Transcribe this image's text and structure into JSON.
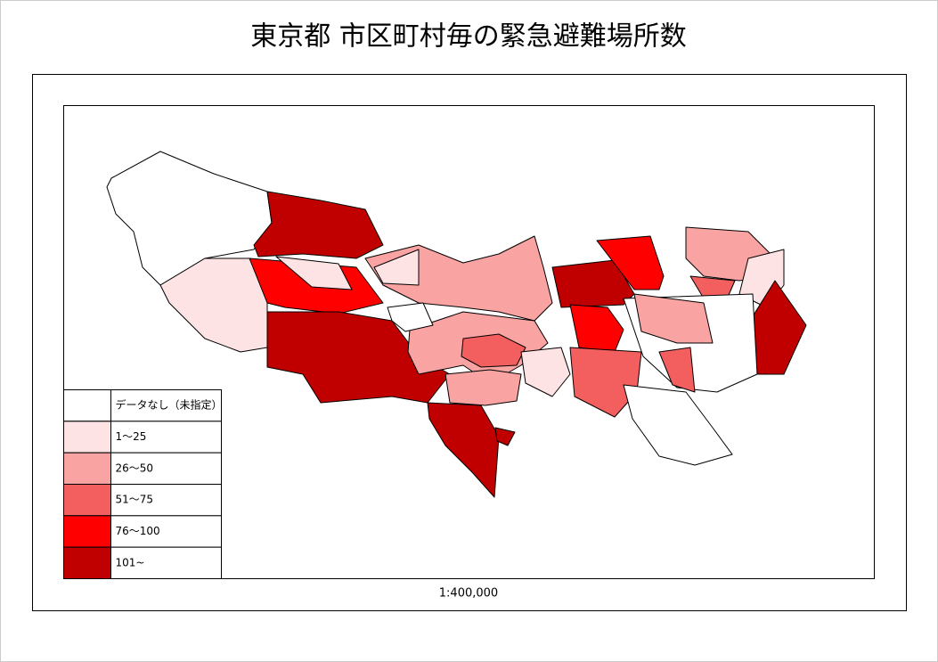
{
  "title": "東京都 市区町村毎の緊急避難場所数",
  "legend": {
    "items": [
      {
        "label": "データなし（未指定）",
        "color": "#ffffff"
      },
      {
        "label": "1～25",
        "color": "#fde3e3"
      },
      {
        "label": "26～50",
        "color": "#f9a3a3"
      },
      {
        "label": "51～75",
        "color": "#f35f5f"
      },
      {
        "label": "76～100",
        "color": "#fe0000"
      },
      {
        "label": "101~",
        "color": "#c00000"
      }
    ]
  },
  "scale": "1:400,000"
}
